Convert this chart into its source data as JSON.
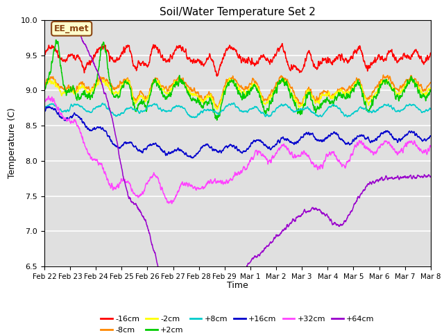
{
  "title": "Soil/Water Temperature Set 2",
  "xlabel": "Time",
  "ylabel": "Temperature (C)",
  "ylim": [
    6.5,
    10.0
  ],
  "background_color": "#ffffff",
  "plot_bg_color": "#e0e0e0",
  "annotation_text": "EE_met",
  "annotation_box_color": "#ffffcc",
  "annotation_border_color": "#8B4513",
  "series": [
    {
      "label": "-16cm",
      "color": "#ff0000"
    },
    {
      "label": "-8cm",
      "color": "#ff8800"
    },
    {
      "label": "-2cm",
      "color": "#ffff00"
    },
    {
      "label": "+2cm",
      "color": "#00cc00"
    },
    {
      "label": "+8cm",
      "color": "#00cccc"
    },
    {
      "label": "+16cm",
      "color": "#0000cc"
    },
    {
      "label": "+32cm",
      "color": "#ff44ff"
    },
    {
      "label": "+64cm",
      "color": "#9900cc"
    }
  ],
  "tick_labels": [
    "Feb 22",
    "Feb 23",
    "Feb 24",
    "Feb 25",
    "Feb 26",
    "Feb 27",
    "Feb 28",
    "Feb 29",
    "Mar 1",
    "Mar 2",
    "Mar 3",
    "Mar 4",
    "Mar 5",
    "Mar 6",
    "Mar 7",
    "Mar 8"
  ],
  "yticks": [
    6.5,
    7.0,
    7.5,
    8.0,
    8.5,
    9.0,
    9.5,
    10.0
  ],
  "num_points": 2000
}
